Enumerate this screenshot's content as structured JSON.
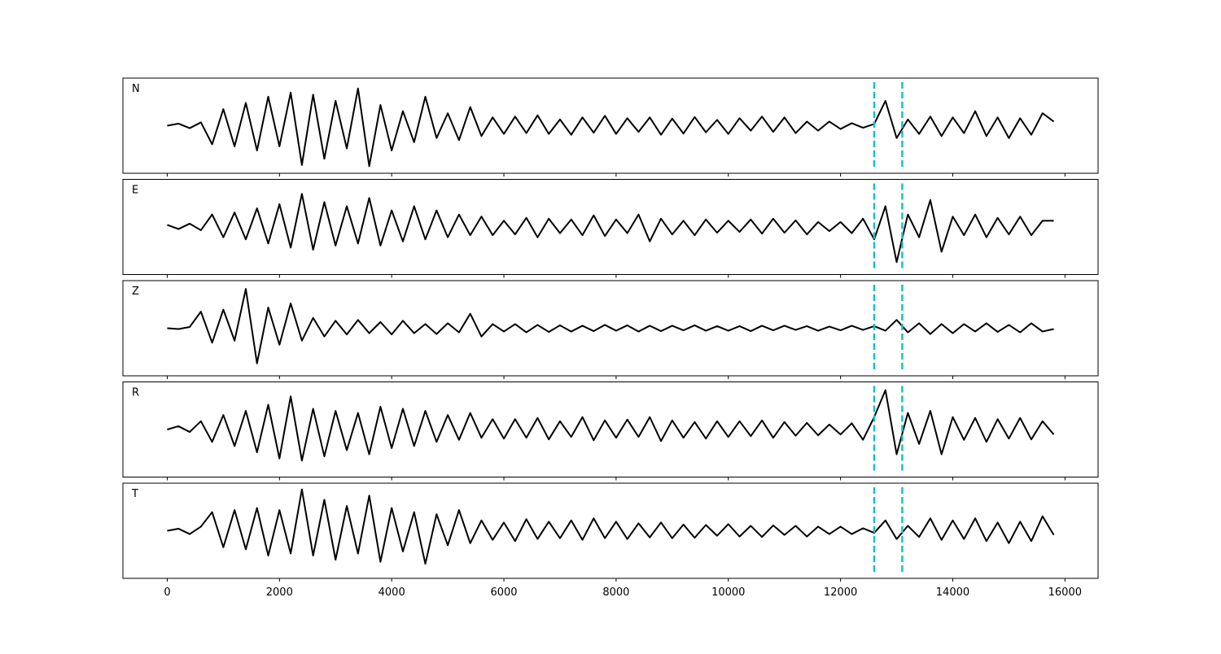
{
  "chart_data": {
    "type": "line",
    "x": [
      0,
      200,
      400,
      600,
      800,
      1000,
      1200,
      1400,
      1600,
      1800,
      2000,
      2200,
      2400,
      2600,
      2800,
      3000,
      3200,
      3400,
      3600,
      3800,
      4000,
      4200,
      4400,
      4600,
      4800,
      5000,
      5200,
      5400,
      5600,
      5800,
      6000,
      6200,
      6400,
      6600,
      6800,
      7000,
      7200,
      7400,
      7600,
      7800,
      8000,
      8200,
      8400,
      8600,
      8800,
      9000,
      9200,
      9400,
      9600,
      9800,
      10000,
      10200,
      10400,
      10600,
      10800,
      11000,
      11200,
      11400,
      11600,
      11800,
      12000,
      12200,
      12400,
      12600,
      12800,
      13000,
      13200,
      13400,
      13600,
      13800,
      14000,
      14200,
      14400,
      14600,
      14800,
      15000,
      15200,
      15400,
      15600,
      15800
    ],
    "xlim": [
      -790,
      16590
    ],
    "xticks": [
      0,
      2000,
      4000,
      6000,
      8000,
      10000,
      12000,
      14000,
      16000
    ],
    "ylim": [
      -1.15,
      1.15
    ],
    "line_color": "#000000",
    "vlines": [
      12600,
      13100
    ],
    "vline_color": "#17becf",
    "series": [
      {
        "name": "N",
        "values": [
          0.0,
          0.05,
          -0.06,
          0.08,
          -0.45,
          0.4,
          -0.5,
          0.55,
          -0.6,
          0.7,
          -0.5,
          0.8,
          -0.95,
          0.75,
          -0.8,
          0.6,
          -0.55,
          0.9,
          -0.98,
          0.5,
          -0.6,
          0.35,
          -0.4,
          0.7,
          -0.3,
          0.3,
          -0.35,
          0.45,
          -0.25,
          0.2,
          -0.2,
          0.22,
          -0.18,
          0.25,
          -0.2,
          0.15,
          -0.22,
          0.2,
          -0.17,
          0.24,
          -0.2,
          0.18,
          -0.15,
          0.2,
          -0.22,
          0.17,
          -0.19,
          0.21,
          -0.16,
          0.14,
          -0.2,
          0.18,
          -0.12,
          0.22,
          -0.15,
          0.2,
          -0.18,
          0.1,
          -0.12,
          0.1,
          -0.08,
          0.06,
          -0.05,
          0.04,
          0.6,
          -0.3,
          0.15,
          -0.2,
          0.22,
          -0.25,
          0.2,
          -0.18,
          0.35,
          -0.25,
          0.2,
          -0.3,
          0.18,
          -0.22,
          0.3,
          0.1
        ]
      },
      {
        "name": "E",
        "values": [
          0.05,
          -0.05,
          0.08,
          -0.08,
          0.3,
          -0.25,
          0.35,
          -0.3,
          0.45,
          -0.4,
          0.55,
          -0.5,
          0.8,
          -0.55,
          0.6,
          -0.45,
          0.5,
          -0.4,
          0.7,
          -0.45,
          0.4,
          -0.35,
          0.5,
          -0.3,
          0.4,
          -0.25,
          0.3,
          -0.2,
          0.25,
          -0.2,
          0.15,
          -0.18,
          0.22,
          -0.25,
          0.2,
          -0.15,
          0.18,
          -0.2,
          0.28,
          -0.22,
          0.18,
          -0.15,
          0.3,
          -0.35,
          0.2,
          -0.18,
          0.15,
          -0.2,
          0.18,
          -0.14,
          0.15,
          -0.12,
          0.18,
          -0.16,
          0.2,
          -0.14,
          0.16,
          -0.18,
          0.12,
          -0.1,
          0.12,
          -0.15,
          0.2,
          -0.3,
          0.5,
          -0.85,
          0.3,
          -0.25,
          0.65,
          -0.6,
          0.25,
          -0.2,
          0.3,
          -0.25,
          0.22,
          -0.18,
          0.25,
          -0.2,
          0.15,
          0.15
        ]
      },
      {
        "name": "Z",
        "values": [
          0.0,
          -0.02,
          0.03,
          0.4,
          -0.35,
          0.45,
          -0.3,
          0.95,
          -0.85,
          0.5,
          -0.4,
          0.6,
          -0.3,
          0.25,
          -0.2,
          0.18,
          -0.15,
          0.2,
          -0.12,
          0.15,
          -0.15,
          0.18,
          -0.12,
          0.1,
          -0.14,
          0.12,
          -0.1,
          0.35,
          -0.2,
          0.1,
          -0.08,
          0.1,
          -0.1,
          0.08,
          -0.09,
          0.07,
          -0.08,
          0.06,
          -0.07,
          0.08,
          -0.06,
          0.07,
          -0.08,
          0.06,
          -0.07,
          0.06,
          -0.05,
          0.07,
          -0.06,
          0.05,
          -0.06,
          0.05,
          -0.07,
          0.06,
          -0.05,
          0.06,
          -0.04,
          0.05,
          -0.06,
          0.04,
          -0.05,
          0.06,
          -0.04,
          0.05,
          -0.06,
          0.2,
          -0.1,
          0.12,
          -0.14,
          0.1,
          -0.12,
          0.1,
          -0.08,
          0.12,
          -0.09,
          0.08,
          -0.1,
          0.12,
          -0.08,
          -0.02
        ]
      },
      {
        "name": "R",
        "values": [
          0.0,
          0.08,
          -0.06,
          0.2,
          -0.3,
          0.35,
          -0.4,
          0.45,
          -0.55,
          0.6,
          -0.7,
          0.8,
          -0.75,
          0.5,
          -0.65,
          0.45,
          -0.5,
          0.4,
          -0.6,
          0.55,
          -0.45,
          0.5,
          -0.4,
          0.45,
          -0.3,
          0.35,
          -0.25,
          0.4,
          -0.2,
          0.25,
          -0.22,
          0.25,
          -0.2,
          0.28,
          -0.24,
          0.2,
          -0.18,
          0.3,
          -0.26,
          0.22,
          -0.2,
          0.24,
          -0.18,
          0.3,
          -0.28,
          0.22,
          -0.2,
          0.18,
          -0.22,
          0.2,
          -0.18,
          0.2,
          -0.16,
          0.22,
          -0.2,
          0.18,
          -0.15,
          0.16,
          -0.14,
          0.12,
          -0.12,
          0.15,
          -0.25,
          0.3,
          0.95,
          -0.6,
          0.4,
          -0.35,
          0.45,
          -0.6,
          0.3,
          -0.25,
          0.28,
          -0.3,
          0.25,
          -0.22,
          0.28,
          -0.24,
          0.2,
          -0.12
        ]
      },
      {
        "name": "T",
        "values": [
          0.0,
          0.05,
          -0.08,
          0.1,
          0.45,
          -0.4,
          0.5,
          -0.45,
          0.55,
          -0.6,
          0.5,
          -0.55,
          1.0,
          -0.6,
          0.75,
          -0.7,
          0.6,
          -0.55,
          0.85,
          -0.75,
          0.55,
          -0.5,
          0.45,
          -0.8,
          0.4,
          -0.35,
          0.5,
          -0.3,
          0.25,
          -0.22,
          0.2,
          -0.25,
          0.28,
          -0.2,
          0.22,
          -0.18,
          0.25,
          -0.22,
          0.3,
          -0.18,
          0.22,
          -0.2,
          0.18,
          -0.16,
          0.2,
          -0.18,
          0.15,
          -0.17,
          0.14,
          -0.12,
          0.16,
          -0.14,
          0.12,
          -0.15,
          0.13,
          -0.1,
          0.12,
          -0.14,
          0.1,
          -0.08,
          0.1,
          -0.08,
          0.06,
          -0.05,
          0.25,
          -0.2,
          0.12,
          -0.15,
          0.3,
          -0.22,
          0.25,
          -0.2,
          0.3,
          -0.25,
          0.2,
          -0.3,
          0.22,
          -0.25,
          0.35,
          -0.1
        ]
      }
    ]
  }
}
